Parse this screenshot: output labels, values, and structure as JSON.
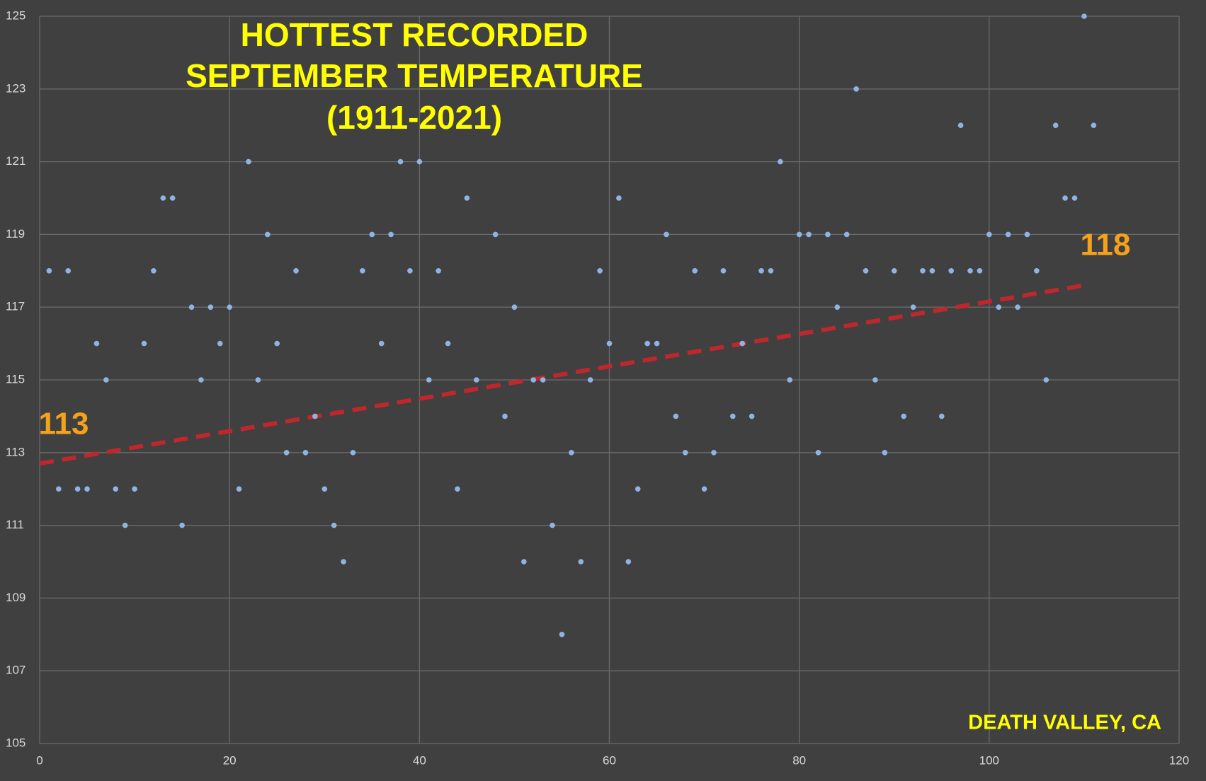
{
  "chart_data": {
    "type": "scatter",
    "title": [
      "HOTTEST RECORDED",
      "SEPTEMBER TEMPERATURE",
      "(1911-2021)"
    ],
    "title_color": "#ffff00",
    "background": "#404040",
    "grid": true,
    "xlim": [
      0,
      120
    ],
    "xticks": [
      0,
      20,
      40,
      60,
      80,
      100,
      120
    ],
    "ylim": [
      105,
      125
    ],
    "yticks": [
      105,
      107,
      109,
      111,
      113,
      115,
      117,
      119,
      121,
      123,
      125
    ],
    "series": [
      {
        "color": "#8fb4e3",
        "x": [
          1,
          2,
          3,
          4,
          5,
          6,
          7,
          8,
          9,
          10,
          11,
          12,
          13,
          14,
          15,
          16,
          17,
          18,
          19,
          20,
          21,
          22,
          23,
          24,
          25,
          26,
          27,
          28,
          29,
          30,
          31,
          32,
          33,
          34,
          35,
          36,
          37,
          38,
          39,
          40,
          41,
          42,
          43,
          44,
          45,
          46,
          48,
          49,
          50,
          51,
          52,
          53,
          54,
          55,
          56,
          57,
          58,
          59,
          60,
          61,
          62,
          63,
          64,
          65,
          66,
          67,
          68,
          69,
          70,
          71,
          72,
          73,
          74,
          75,
          76,
          77,
          78,
          79,
          80,
          81,
          82,
          83,
          84,
          85,
          86,
          87,
          88,
          89,
          90,
          91,
          92,
          93,
          94,
          95,
          96,
          97,
          98,
          99,
          100,
          101,
          102,
          103,
          104,
          105,
          106,
          107,
          108,
          109,
          110,
          111
        ],
        "values": [
          118,
          112,
          118,
          112,
          112,
          116,
          115,
          112,
          111,
          112,
          116,
          118,
          120,
          120,
          111,
          117,
          115,
          117,
          116,
          117,
          112,
          121,
          115,
          119,
          116,
          113,
          118,
          113,
          114,
          112,
          111,
          110,
          113,
          118,
          119,
          116,
          119,
          121,
          118,
          121,
          115,
          118,
          116,
          112,
          120,
          115,
          119,
          114,
          117,
          110,
          115,
          115,
          111,
          108,
          113,
          110,
          115,
          118,
          116,
          120,
          110,
          112,
          116,
          116,
          119,
          114,
          113,
          118,
          112,
          113,
          118,
          114,
          116,
          114,
          118,
          118,
          121,
          115,
          119,
          119,
          113,
          119,
          117,
          119,
          123,
          118,
          115,
          113,
          118,
          114,
          117,
          118,
          118,
          114,
          118,
          122,
          118,
          118,
          119,
          117,
          119,
          117,
          119,
          118,
          115,
          122,
          120,
          120,
          125,
          122
        ]
      }
    ],
    "trendline": {
      "color": "#c0272d",
      "x": [
        0,
        110
      ],
      "values": [
        112.7,
        117.6
      ]
    },
    "annotations": [
      {
        "text": "113",
        "color": "#f5a11c"
      },
      {
        "text": "118",
        "color": "#f5a11c"
      },
      {
        "text": "DEATH VALLEY, CA",
        "color": "#ffff00"
      }
    ]
  }
}
